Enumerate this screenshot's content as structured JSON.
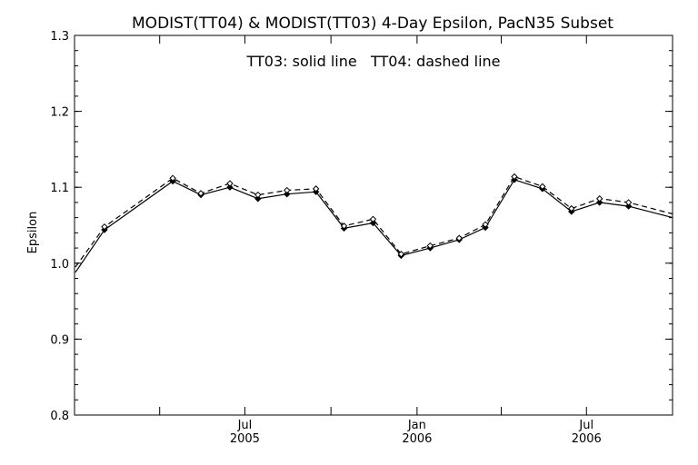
{
  "chart_data": {
    "type": "line",
    "title": "MODIST(TT04) & MODIST(TT03) 4-Day Epsilon, PacN35 Subset",
    "annotation": "TT03: solid line   TT04: dashed line",
    "ylabel": "Epsilon",
    "xlabel": "",
    "ylim": [
      0.8,
      1.3
    ],
    "xlim": [
      "2004-12-31",
      "2006-10-01"
    ],
    "y_ticks": [
      "0.8",
      "0.9",
      "1.0",
      "1.1",
      "1.2",
      "1.3"
    ],
    "x_tick_dates": [
      "2005-04-01",
      "2005-07-01",
      "2005-10-01",
      "2006-01-01",
      "2006-04-01",
      "2006-07-01"
    ],
    "x_tick_labels": [
      {
        "date": "2005-07-01",
        "month": "Jul",
        "year": "2005"
      },
      {
        "date": "2006-01-01",
        "month": "Jan",
        "year": "2006"
      },
      {
        "date": "2006-07-01",
        "month": "Jul",
        "year": "2006"
      }
    ],
    "grid": false,
    "colors": {
      "line": "#000000",
      "axis": "#000000",
      "background": "#ffffff"
    },
    "series": [
      {
        "name": "TT03",
        "style": "solid",
        "points": [
          [
            "2005-01-01",
            0.988
          ],
          [
            "2005-02-01",
            1.044
          ],
          [
            "2005-04-15",
            1.108
          ],
          [
            "2005-05-15",
            1.09
          ],
          [
            "2005-06-15",
            1.1
          ],
          [
            "2005-07-15",
            1.085
          ],
          [
            "2005-08-15",
            1.091
          ],
          [
            "2005-09-15",
            1.094
          ],
          [
            "2005-10-15",
            1.046
          ],
          [
            "2005-11-15",
            1.053
          ],
          [
            "2005-12-15",
            1.01
          ],
          [
            "2006-01-15",
            1.02
          ],
          [
            "2006-02-15",
            1.031
          ],
          [
            "2006-03-15",
            1.047
          ],
          [
            "2006-04-15",
            1.11
          ],
          [
            "2006-05-15",
            1.098
          ],
          [
            "2006-06-15",
            1.068
          ],
          [
            "2006-07-15",
            1.08
          ],
          [
            "2006-08-15",
            1.075
          ],
          [
            "2006-10-01",
            1.06
          ]
        ]
      },
      {
        "name": "TT04",
        "style": "dashed",
        "points": [
          [
            "2005-01-01",
            0.995
          ],
          [
            "2005-02-01",
            1.048
          ],
          [
            "2005-04-15",
            1.112
          ],
          [
            "2005-05-15",
            1.092
          ],
          [
            "2005-06-15",
            1.105
          ],
          [
            "2005-07-15",
            1.09
          ],
          [
            "2005-08-15",
            1.096
          ],
          [
            "2005-09-15",
            1.098
          ],
          [
            "2005-10-15",
            1.049
          ],
          [
            "2005-11-15",
            1.058
          ],
          [
            "2005-12-15",
            1.012
          ],
          [
            "2006-01-15",
            1.023
          ],
          [
            "2006-02-15",
            1.033
          ],
          [
            "2006-03-15",
            1.051
          ],
          [
            "2006-04-15",
            1.114
          ],
          [
            "2006-05-15",
            1.101
          ],
          [
            "2006-06-15",
            1.072
          ],
          [
            "2006-07-15",
            1.085
          ],
          [
            "2006-08-15",
            1.08
          ],
          [
            "2006-10-01",
            1.065
          ]
        ]
      }
    ]
  }
}
